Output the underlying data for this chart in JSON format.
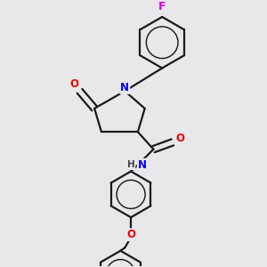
{
  "bg_color": "#e8e8ea",
  "bond_color": "#1a1a1a",
  "bond_width": 1.6,
  "atom_colors": {
    "N": "#0000ee",
    "O": "#ee0000",
    "F": "#dd00dd",
    "C": "#1a1a1a",
    "H": "#444444"
  },
  "font_size": 8.5
}
